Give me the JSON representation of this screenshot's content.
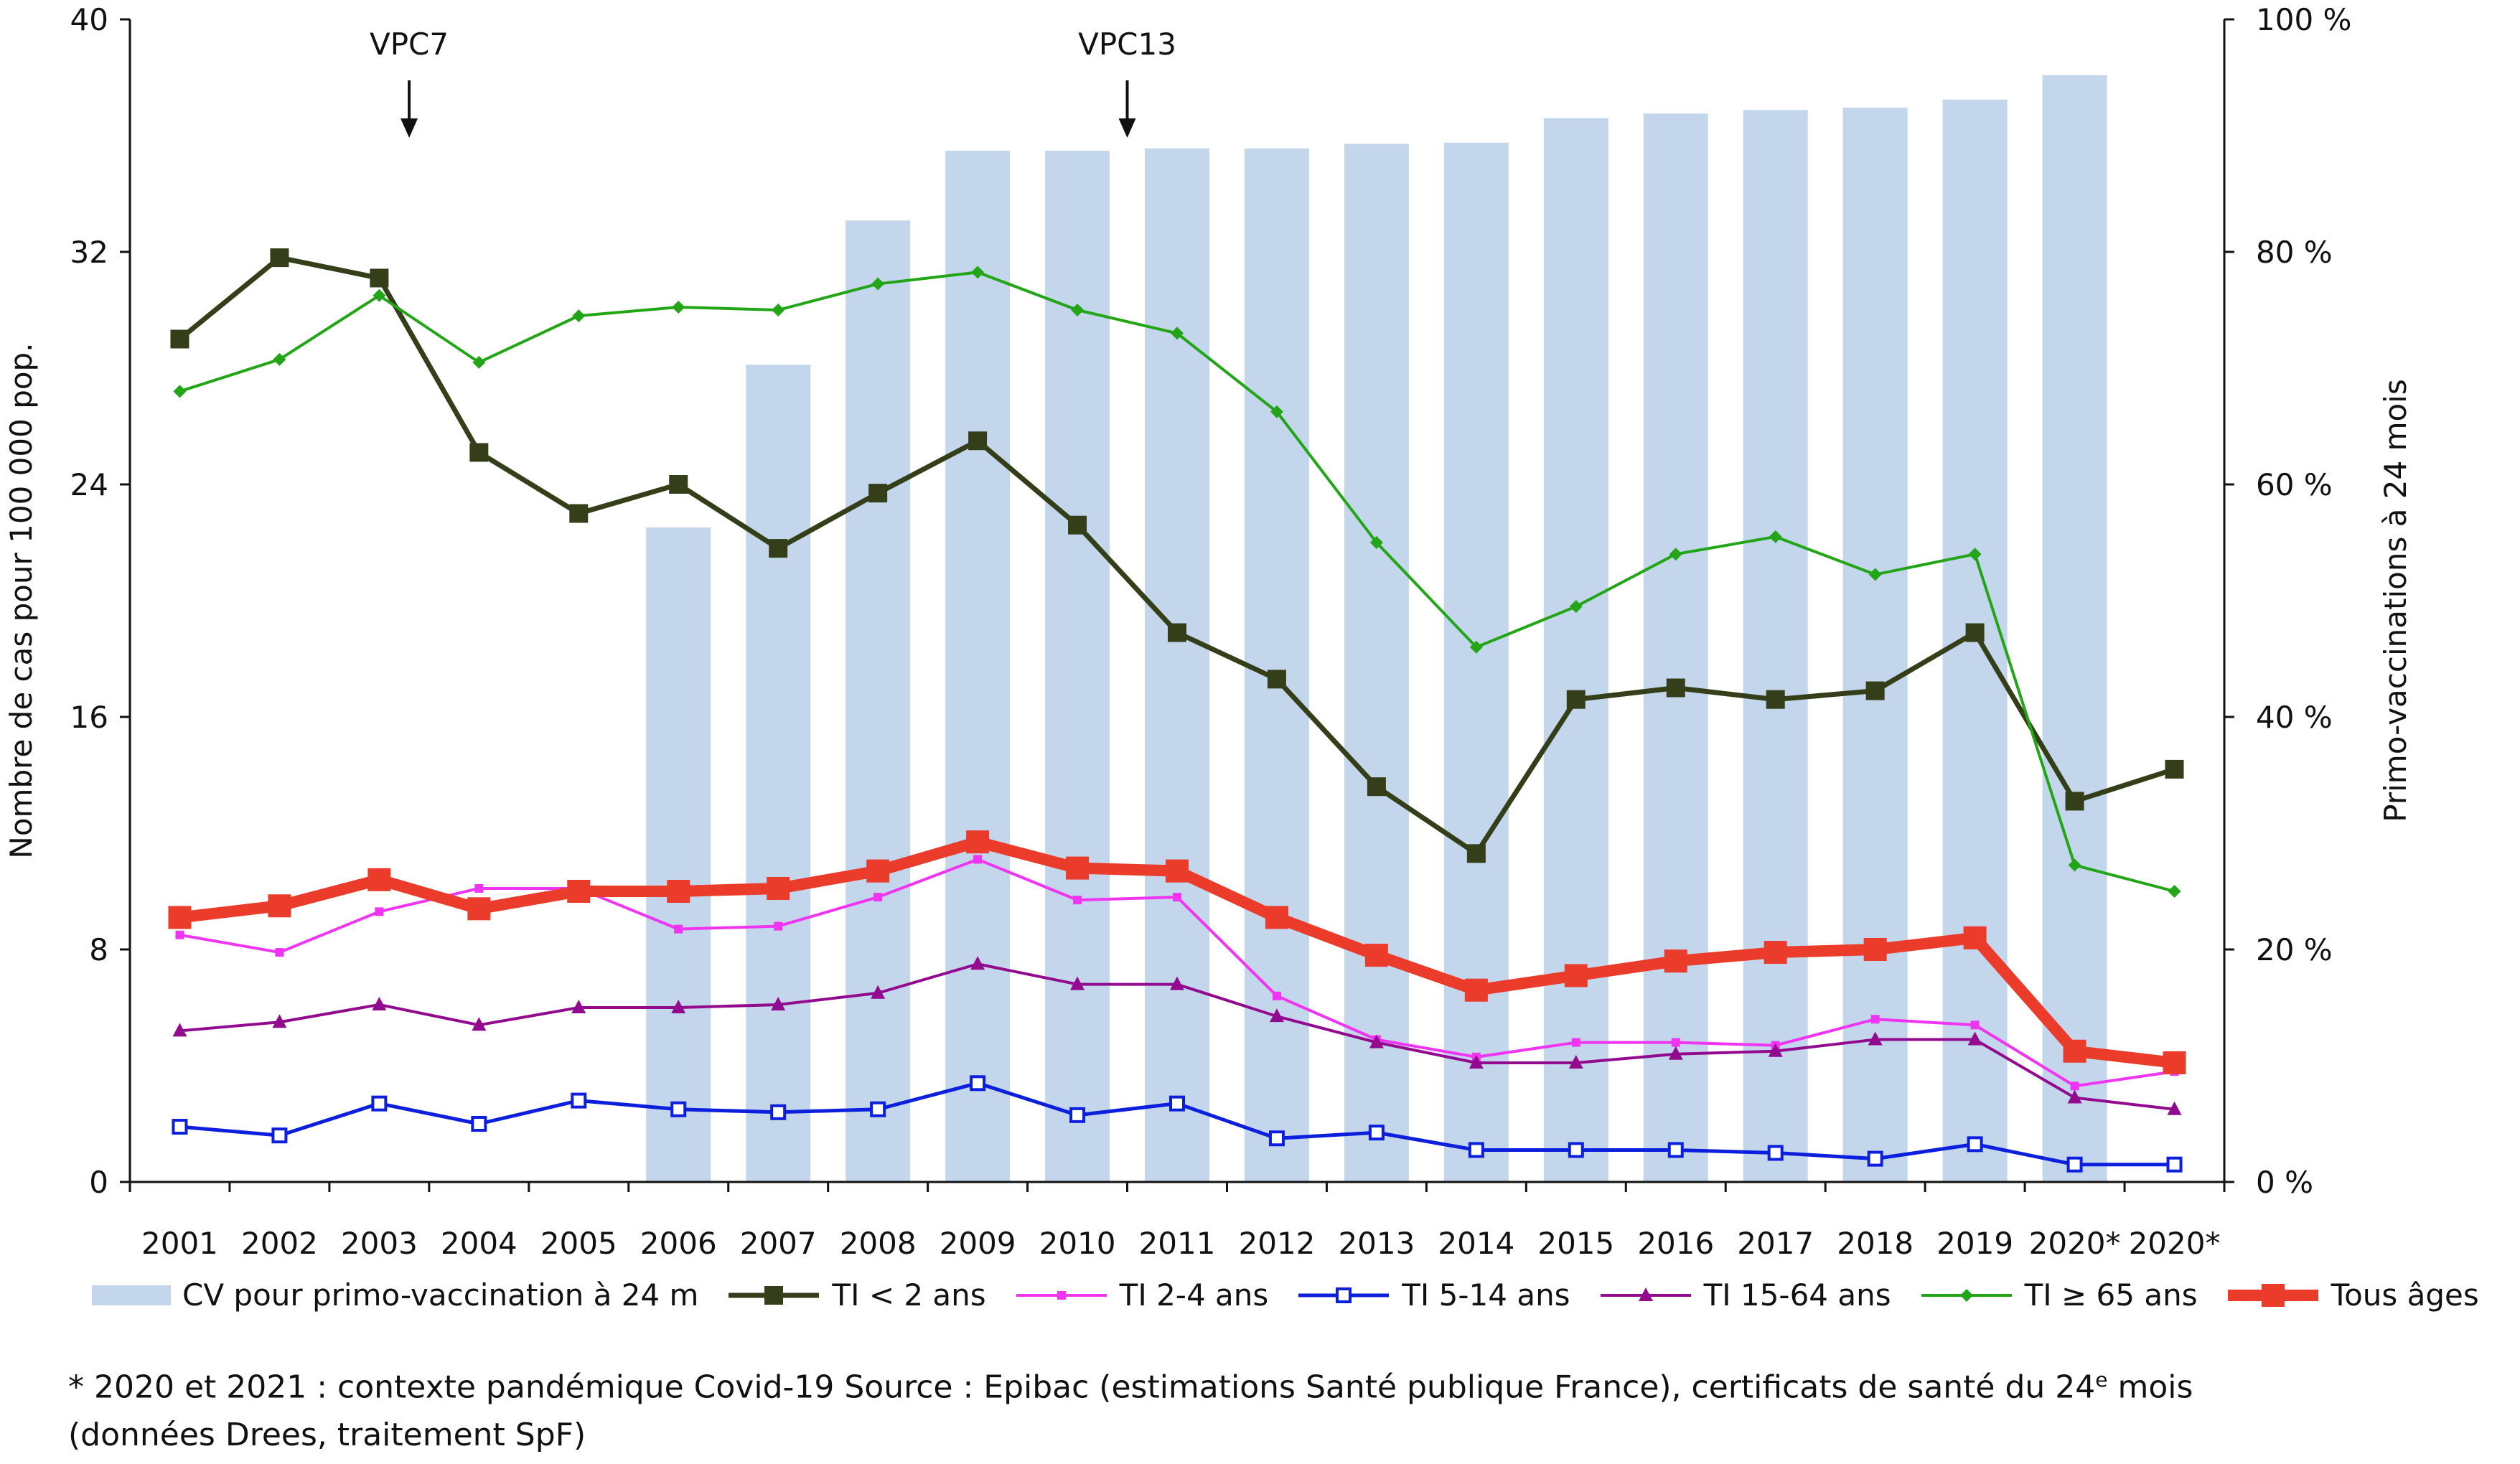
{
  "chart_data": {
    "type": "bar+line",
    "categories": [
      "2001",
      "2002",
      "2003",
      "2004",
      "2005",
      "2006",
      "2007",
      "2008",
      "2009",
      "2010",
      "2011",
      "2012",
      "2013",
      "2014",
      "2015",
      "2016",
      "2017",
      "2018",
      "2019",
      "2020*",
      "2020*"
    ],
    "bars": {
      "name": "CV pour primo-vaccination à 24 m",
      "axis": "right",
      "color": "#c3d6ec",
      "values": [
        null,
        null,
        null,
        null,
        null,
        56.3,
        70.3,
        82.7,
        88.7,
        88.7,
        88.9,
        88.9,
        89.3,
        89.4,
        91.5,
        91.9,
        92.2,
        92.4,
        93.1,
        95.2,
        null
      ]
    },
    "series": [
      {
        "name": "TI < 2 ans",
        "color": "#343f1a",
        "marker": "square",
        "width": 7,
        "values": [
          29.0,
          31.8,
          31.1,
          25.1,
          23.0,
          24.0,
          21.8,
          23.7,
          25.5,
          22.6,
          18.9,
          17.3,
          13.6,
          11.3,
          16.6,
          17.0,
          16.6,
          16.9,
          18.9,
          13.1,
          14.2
        ]
      },
      {
        "name": "TI 2-4 ans",
        "color": "#f035f2",
        "marker": "small-square",
        "width": 4,
        "values": [
          8.5,
          7.9,
          9.3,
          10.1,
          10.1,
          8.7,
          8.8,
          9.8,
          11.1,
          9.7,
          9.8,
          6.4,
          4.9,
          4.3,
          4.8,
          4.8,
          4.7,
          5.6,
          5.4,
          3.3,
          3.8
        ]
      },
      {
        "name": "TI 5-14 ans",
        "color": "#0c1fdc",
        "marker": "open-square",
        "width": 5,
        "values": [
          1.9,
          1.6,
          2.7,
          2.0,
          2.8,
          2.5,
          2.4,
          2.5,
          3.4,
          2.3,
          2.7,
          1.5,
          1.7,
          1.1,
          1.1,
          1.1,
          1.0,
          0.8,
          1.3,
          0.6,
          0.6
        ]
      },
      {
        "name": "TI 15-64 ans",
        "color": "#920a8e",
        "marker": "triangle",
        "width": 4,
        "values": [
          5.2,
          5.5,
          6.1,
          5.4,
          6.0,
          6.0,
          6.1,
          6.5,
          7.5,
          6.8,
          6.8,
          5.7,
          4.8,
          4.1,
          4.1,
          4.4,
          4.5,
          4.9,
          4.9,
          2.9,
          2.5
        ]
      },
      {
        "name": "TI ≥ 65 ans",
        "color": "#22a516",
        "marker": "diamond",
        "width": 4,
        "values": [
          27.2,
          28.3,
          30.5,
          28.2,
          29.8,
          30.1,
          30.0,
          30.9,
          31.3,
          30.0,
          29.2,
          26.5,
          22.0,
          18.4,
          19.8,
          21.6,
          22.2,
          20.9,
          21.6,
          10.9,
          10.0
        ]
      },
      {
        "name": "Tous âges",
        "color": "#ea3b2b",
        "marker": "big-square",
        "width": 16,
        "values": [
          9.1,
          9.5,
          10.4,
          9.4,
          10.0,
          10.0,
          10.1,
          10.7,
          11.7,
          10.8,
          10.7,
          9.1,
          7.8,
          6.6,
          7.1,
          7.6,
          7.9,
          8.0,
          8.4,
          4.5,
          4.1
        ]
      }
    ],
    "y_left": {
      "label": "Nombre de cas pour 100 000 pop.",
      "ticks": [
        "0",
        "8",
        "16",
        "24",
        "32",
        "40"
      ],
      "range": [
        0,
        40
      ]
    },
    "y_right": {
      "label": "Primo-vaccinations à 24 mois",
      "ticks": [
        "0 %",
        "20 %",
        "40 %",
        "60 %",
        "80 %",
        "100 %"
      ],
      "range": [
        0,
        100
      ]
    },
    "annotations": [
      {
        "text": "VPC7",
        "x_position": 2.8
      },
      {
        "text": "VPC13",
        "x_position": 10.0
      }
    ],
    "grid": false,
    "legend_position": "bottom"
  },
  "legend": [
    {
      "label": "CV pour primo-vaccination à 24 m",
      "key": "bar"
    },
    {
      "label": "TI < 2 ans",
      "key": "line0"
    },
    {
      "label": "TI 2-4 ans",
      "key": "line1"
    },
    {
      "label": "TI 5-14 ans",
      "key": "line2"
    },
    {
      "label": "TI 15-64 ans",
      "key": "line3"
    },
    {
      "label": "TI ≥ 65 ans",
      "key": "line4"
    },
    {
      "label": "Tous âges",
      "key": "line5"
    }
  ],
  "footnote": {
    "line1_pre": "* 2020 et 2021 : contexte pandémique Covid-19 Source : Epibac (estimations Santé publique France), certificats de santé du 24",
    "line1_sup": "e",
    "line1_post": " mois",
    "line2": "(données Drees, traitement SpF)"
  }
}
